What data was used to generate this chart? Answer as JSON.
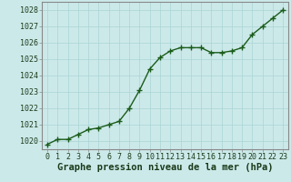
{
  "x": [
    0,
    1,
    2,
    3,
    4,
    5,
    6,
    7,
    8,
    9,
    10,
    11,
    12,
    13,
    14,
    15,
    16,
    17,
    18,
    19,
    20,
    21,
    22,
    23
  ],
  "y": [
    1019.8,
    1020.1,
    1020.1,
    1020.4,
    1020.7,
    1020.8,
    1021.0,
    1021.2,
    1022.0,
    1023.1,
    1024.4,
    1025.1,
    1025.5,
    1025.7,
    1025.7,
    1025.7,
    1025.4,
    1025.4,
    1025.5,
    1025.7,
    1026.5,
    1027.0,
    1027.5,
    1028.0
  ],
  "ylim": [
    1019.5,
    1028.5
  ],
  "yticks": [
    1020,
    1021,
    1022,
    1023,
    1024,
    1025,
    1026,
    1027,
    1028
  ],
  "xticks": [
    0,
    1,
    2,
    3,
    4,
    5,
    6,
    7,
    8,
    9,
    10,
    11,
    12,
    13,
    14,
    15,
    16,
    17,
    18,
    19,
    20,
    21,
    22,
    23
  ],
  "line_color": "#1a5c1a",
  "marker": "+",
  "marker_size": 4,
  "line_width": 1.0,
  "bg_color": "#cce9e9",
  "grid_color": "#aad4d4",
  "xlabel": "Graphe pression niveau de la mer (hPa)",
  "xlabel_fontsize": 7.5,
  "tick_fontsize": 6.0,
  "tick_color": "#1a3a1a",
  "label_color": "#1a3a1a",
  "spine_color": "#888888"
}
